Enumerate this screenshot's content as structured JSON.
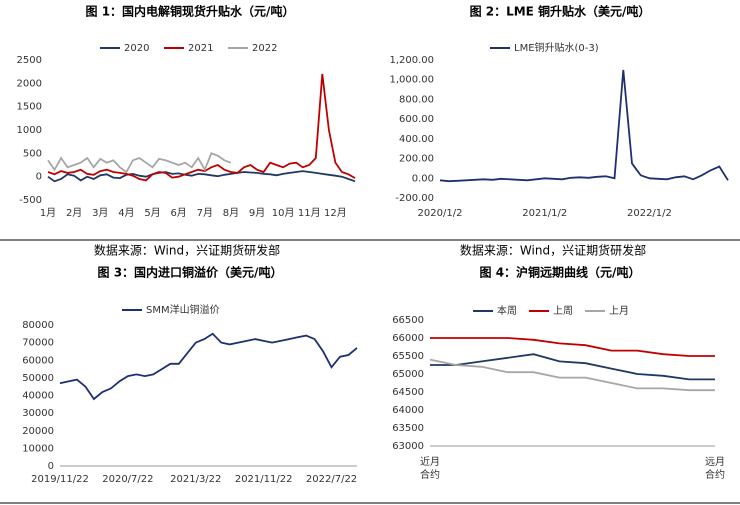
{
  "chart_data": [
    {
      "type": "line",
      "title": "图 1：国内电解铜现货升贴水（元/吨）",
      "categories": [
        "1月",
        null,
        null,
        null,
        "2月",
        null,
        null,
        null,
        "3月",
        null,
        null,
        null,
        "4月",
        null,
        null,
        null,
        "5月",
        null,
        null,
        null,
        "6月",
        null,
        null,
        null,
        "7月",
        null,
        null,
        null,
        "8月",
        null,
        null,
        null,
        "9月",
        null,
        null,
        null,
        "10月",
        null,
        null,
        null,
        "11月",
        null,
        null,
        null,
        "12月",
        null,
        null,
        null
      ],
      "series": [
        {
          "name": "2020",
          "color": "#1f3864",
          "values": [
            0,
            -100,
            -50,
            50,
            20,
            -80,
            0,
            -50,
            30,
            50,
            -20,
            -30,
            40,
            60,
            20,
            0,
            50,
            80,
            100,
            60,
            70,
            40,
            20,
            60,
            50,
            30,
            10,
            40,
            60,
            80,
            100,
            90,
            80,
            60,
            50,
            30,
            60,
            80,
            100,
            120,
            100,
            80,
            60,
            40,
            20,
            0,
            -50,
            -100
          ]
        },
        {
          "name": "2021",
          "color": "#c00000",
          "values": [
            100,
            50,
            120,
            80,
            100,
            150,
            60,
            40,
            120,
            150,
            100,
            80,
            60,
            20,
            -50,
            -80,
            50,
            100,
            80,
            -20,
            0,
            50,
            100,
            150,
            120,
            200,
            250,
            150,
            100,
            80,
            200,
            250,
            150,
            100,
            300,
            250,
            200,
            280,
            300,
            200,
            250,
            400,
            2200,
            1000,
            300,
            100,
            50,
            -30
          ]
        },
        {
          "name": "2022",
          "color": "#a6a6a6",
          "values": [
            350,
            150,
            400,
            200,
            250,
            300,
            400,
            200,
            380,
            300,
            350,
            200,
            100,
            350,
            400,
            300,
            200,
            380,
            350,
            300,
            250,
            300,
            200,
            400,
            150,
            500,
            450,
            350,
            300,
            null,
            null,
            null,
            null,
            null,
            null,
            null,
            null,
            null,
            null,
            null,
            null,
            null,
            null,
            null,
            null,
            null,
            null,
            null
          ]
        }
      ],
      "ylim": [
        -500,
        2500
      ],
      "yticks": [
        -500,
        0,
        500,
        1000,
        1500,
        2000,
        2500
      ],
      "source": "数据来源：Wind，兴证期货研发部"
    },
    {
      "type": "line",
      "title": "图 2：LME 铜升贴水（美元/吨）",
      "categories": [
        "2020/1/2",
        null,
        null,
        null,
        null,
        null,
        null,
        null,
        null,
        null,
        null,
        null,
        "2021/1/2",
        null,
        null,
        null,
        null,
        null,
        null,
        null,
        null,
        null,
        null,
        null,
        "2022/1/2",
        null,
        null,
        null,
        null,
        null,
        null,
        null,
        null,
        null
      ],
      "series": [
        {
          "name": "LME铜升贴水(0-3)",
          "color": "#1f3070",
          "values": [
            -20,
            -30,
            -25,
            -20,
            -15,
            -10,
            -15,
            -5,
            -10,
            -15,
            -20,
            -10,
            0,
            -5,
            -10,
            5,
            10,
            5,
            15,
            20,
            0,
            1100,
            150,
            30,
            0,
            -5,
            -10,
            10,
            20,
            -10,
            30,
            80,
            120,
            -20
          ]
        }
      ],
      "ylim": [
        -200,
        1200
      ],
      "yticks": [
        {
          "value": -200,
          "label": "-200.00"
        },
        {
          "value": 0,
          "label": "0.00"
        },
        {
          "value": 200,
          "label": "200.00"
        },
        {
          "value": 400,
          "label": "400.00"
        },
        {
          "value": 600,
          "label": "600.00"
        },
        {
          "value": 800,
          "label": "800.00"
        },
        {
          "value": 1000,
          "label": "1,000.00"
        },
        {
          "value": 1200,
          "label": "1,200.00"
        }
      ],
      "source": "数据来源：Wind，兴证期货研发部"
    },
    {
      "type": "line",
      "title": "图 3：国内进口铜溢价（美元/吨）",
      "categories": [
        "2019/11/22",
        null,
        null,
        null,
        null,
        null,
        null,
        null,
        "2020/7/22",
        null,
        null,
        null,
        null,
        null,
        null,
        null,
        "2021/3/22",
        null,
        null,
        null,
        null,
        null,
        null,
        null,
        "2021/11/22",
        null,
        null,
        null,
        null,
        null,
        null,
        null,
        "2022/7/22",
        null,
        null,
        null
      ],
      "series": [
        {
          "name": "SMM洋山铜溢价",
          "color": "#1f3070",
          "values": [
            47000,
            48000,
            49000,
            45000,
            38000,
            42000,
            44000,
            48000,
            51000,
            52000,
            51000,
            52000,
            55000,
            58000,
            58000,
            64000,
            70000,
            72000,
            75000,
            70000,
            69000,
            70000,
            71000,
            72000,
            71000,
            70000,
            71000,
            72000,
            73000,
            74000,
            72000,
            65000,
            56000,
            62000,
            63000,
            67000
          ]
        }
      ],
      "ylim": [
        0,
        80000
      ],
      "yticks": [
        0,
        10000,
        20000,
        30000,
        40000,
        50000,
        60000,
        70000,
        80000
      ]
    },
    {
      "type": "line",
      "title": "图 4：沪铜远期曲线（元/吨）",
      "categories": [
        "近月合约",
        null,
        null,
        null,
        null,
        null,
        null,
        null,
        null,
        null,
        null,
        "远月合约"
      ],
      "series": [
        {
          "name": "本周",
          "color": "#1f3864",
          "values": [
            65250,
            65250,
            65350,
            65450,
            65550,
            65350,
            65300,
            65150,
            65000,
            64950,
            64850,
            64850
          ]
        },
        {
          "name": "上周",
          "color": "#c00000",
          "values": [
            66000,
            66000,
            66000,
            66000,
            65950,
            65850,
            65800,
            65650,
            65650,
            65550,
            65500,
            65500
          ]
        },
        {
          "name": "上月",
          "color": "#a6a6a6",
          "values": [
            65400,
            65250,
            65200,
            65050,
            65050,
            64900,
            64900,
            64750,
            64600,
            64600,
            64550,
            64550
          ]
        }
      ],
      "ylim": [
        63000,
        66500
      ],
      "yticks": [
        63000,
        63500,
        64000,
        64500,
        65000,
        65500,
        66000,
        66500
      ]
    }
  ]
}
